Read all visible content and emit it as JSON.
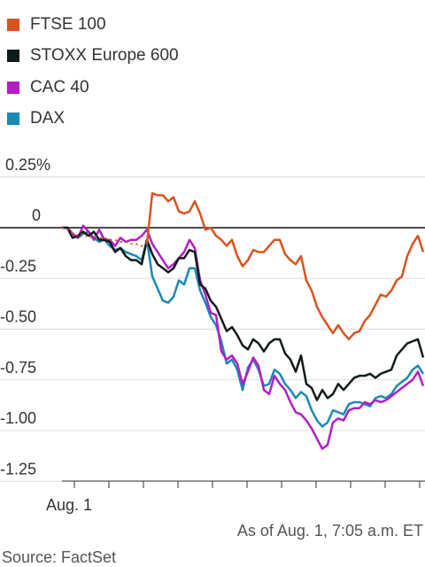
{
  "legend": [
    {
      "label": "FTSE 100",
      "color": "#d9531e"
    },
    {
      "label": "STOXX Europe 600",
      "color": "#111a1a"
    },
    {
      "label": "CAC 40",
      "color": "#b41ec4"
    },
    {
      "label": "DAX",
      "color": "#1a8ab5"
    }
  ],
  "footer": {
    "as_of": "As of Aug. 1, 7:05 a.m. ET",
    "source": "Source: FactSet"
  },
  "chart_data": {
    "type": "line",
    "y_tick_labels": [
      "0.25%",
      "0",
      "-0.25",
      "-0.50",
      "-0.75",
      "-1.00",
      "-1.25"
    ],
    "y_ticks": [
      0.25,
      0,
      -0.25,
      -0.5,
      -0.75,
      -1.0,
      -1.25
    ],
    "ylim": [
      -1.35,
      0.3
    ],
    "x_tick_label": "Aug. 1",
    "grid": true,
    "legend_position": "top-left",
    "series": [
      {
        "name": "FTSE 100",
        "color": "#d9531e",
        "x": [
          70,
          76,
          82,
          88,
          94,
          100,
          106,
          112,
          118,
          124,
          130,
          136,
          142,
          148,
          154,
          160,
          166,
          172,
          178,
          184,
          190,
          196,
          202,
          208,
          214,
          220,
          226,
          232,
          238,
          244,
          250,
          256,
          262,
          268,
          274,
          280,
          286,
          292,
          298,
          304,
          310,
          316,
          322,
          328,
          334,
          340,
          346,
          352,
          358,
          364,
          370,
          376,
          382,
          388,
          394,
          400,
          406,
          412,
          418,
          424,
          430,
          436,
          442,
          448,
          454,
          460,
          466,
          472,
          478
        ],
        "y": [
          0,
          -0.01,
          -0.03,
          -0.04,
          -0.03,
          -0.05,
          -0.04,
          -0.05,
          -0.05,
          -0.06,
          -0.06,
          -0.07,
          -0.07,
          -0.08,
          -0.08,
          -0.09,
          -0.08,
          0.17,
          0.16,
          0.16,
          0.13,
          0.15,
          0.08,
          0.07,
          0.08,
          0.13,
          0.07,
          -0.01,
          0.0,
          -0.04,
          -0.06,
          -0.09,
          -0.06,
          -0.14,
          -0.19,
          -0.16,
          -0.11,
          -0.12,
          -0.12,
          -0.09,
          -0.06,
          -0.06,
          -0.13,
          -0.16,
          -0.18,
          -0.14,
          -0.26,
          -0.31,
          -0.39,
          -0.44,
          -0.48,
          -0.52,
          -0.48,
          -0.52,
          -0.55,
          -0.52,
          -0.51,
          -0.46,
          -0.43,
          -0.38,
          -0.33,
          -0.34,
          -0.31,
          -0.26,
          -0.24,
          -0.14,
          -0.08,
          -0.04,
          -0.12
        ]
      },
      {
        "name": "STOXX Europe 600",
        "color": "#111a1a",
        "x": [
          70,
          76,
          82,
          88,
          94,
          100,
          106,
          112,
          118,
          124,
          130,
          136,
          142,
          148,
          154,
          160,
          166,
          172,
          178,
          184,
          190,
          196,
          202,
          208,
          214,
          220,
          226,
          232,
          238,
          244,
          250,
          256,
          262,
          268,
          274,
          280,
          286,
          292,
          298,
          304,
          310,
          316,
          322,
          328,
          334,
          340,
          346,
          352,
          358,
          364,
          370,
          376,
          382,
          388,
          394,
          400,
          406,
          412,
          418,
          424,
          430,
          436,
          442,
          448,
          454,
          460,
          466,
          472,
          478
        ],
        "y": [
          0,
          0,
          -0.05,
          -0.04,
          -0.02,
          -0.04,
          -0.02,
          -0.06,
          -0.06,
          -0.07,
          -0.12,
          -0.1,
          -0.14,
          -0.16,
          -0.16,
          -0.18,
          -0.06,
          -0.13,
          -0.18,
          -0.2,
          -0.22,
          -0.2,
          -0.15,
          -0.15,
          -0.11,
          -0.12,
          -0.28,
          -0.3,
          -0.36,
          -0.39,
          -0.45,
          -0.51,
          -0.49,
          -0.53,
          -0.58,
          -0.6,
          -0.55,
          -0.57,
          -0.61,
          -0.57,
          -0.55,
          -0.55,
          -0.62,
          -0.65,
          -0.71,
          -0.63,
          -0.77,
          -0.79,
          -0.85,
          -0.8,
          -0.84,
          -0.82,
          -0.77,
          -0.8,
          -0.77,
          -0.74,
          -0.73,
          -0.73,
          -0.72,
          -0.74,
          -0.72,
          -0.71,
          -0.7,
          -0.63,
          -0.6,
          -0.57,
          -0.56,
          -0.55,
          -0.64
        ]
      },
      {
        "name": "CAC 40",
        "color": "#b41ec4",
        "x": [
          70,
          76,
          82,
          88,
          94,
          100,
          106,
          112,
          118,
          124,
          130,
          136,
          142,
          148,
          154,
          160,
          166,
          172,
          178,
          184,
          190,
          196,
          202,
          208,
          214,
          220,
          226,
          232,
          238,
          244,
          250,
          256,
          262,
          268,
          274,
          280,
          286,
          292,
          298,
          304,
          310,
          316,
          322,
          328,
          334,
          340,
          346,
          352,
          358,
          364,
          370,
          376,
          382,
          388,
          394,
          400,
          406,
          412,
          418,
          424,
          430,
          436,
          442,
          448,
          454,
          460,
          466,
          472,
          478
        ],
        "y": [
          0,
          0,
          -0.03,
          -0.05,
          0.01,
          -0.02,
          -0.06,
          -0.01,
          -0.06,
          -0.06,
          -0.09,
          -0.05,
          -0.07,
          -0.06,
          -0.06,
          -0.04,
          -0.01,
          -0.08,
          -0.12,
          -0.16,
          -0.2,
          -0.18,
          -0.15,
          -0.12,
          -0.06,
          -0.1,
          -0.26,
          -0.33,
          -0.42,
          -0.43,
          -0.61,
          -0.65,
          -0.63,
          -0.67,
          -0.77,
          -0.71,
          -0.64,
          -0.68,
          -0.8,
          -0.82,
          -0.73,
          -0.77,
          -0.8,
          -0.86,
          -0.91,
          -0.92,
          -0.95,
          -0.99,
          -1.04,
          -1.09,
          -1.07,
          -0.96,
          -0.94,
          -0.95,
          -0.9,
          -0.89,
          -0.89,
          -0.86,
          -0.87,
          -0.85,
          -0.86,
          -0.85,
          -0.83,
          -0.81,
          -0.79,
          -0.77,
          -0.75,
          -0.71,
          -0.78
        ]
      },
      {
        "name": "DAX",
        "color": "#1a8ab5",
        "x": [
          70,
          76,
          82,
          88,
          94,
          100,
          106,
          112,
          118,
          124,
          130,
          136,
          142,
          148,
          154,
          160,
          166,
          172,
          178,
          184,
          190,
          196,
          202,
          208,
          214,
          220,
          226,
          232,
          238,
          244,
          250,
          256,
          262,
          268,
          274,
          280,
          286,
          292,
          298,
          304,
          310,
          316,
          322,
          328,
          334,
          340,
          346,
          352,
          358,
          364,
          370,
          376,
          382,
          388,
          394,
          400,
          406,
          412,
          418,
          424,
          430,
          436,
          442,
          448,
          454,
          460,
          466,
          472,
          478
        ],
        "y": [
          0,
          0,
          -0.03,
          -0.05,
          -0.03,
          -0.02,
          -0.05,
          -0.07,
          -0.06,
          -0.09,
          -0.11,
          -0.1,
          -0.12,
          -0.13,
          -0.14,
          -0.16,
          -0.06,
          -0.24,
          -0.3,
          -0.36,
          -0.37,
          -0.34,
          -0.26,
          -0.28,
          -0.2,
          -0.2,
          -0.31,
          -0.37,
          -0.44,
          -0.48,
          -0.56,
          -0.67,
          -0.65,
          -0.7,
          -0.8,
          -0.69,
          -0.65,
          -0.7,
          -0.78,
          -0.77,
          -0.7,
          -0.72,
          -0.77,
          -0.8,
          -0.84,
          -0.81,
          -0.83,
          -0.9,
          -0.95,
          -0.98,
          -0.96,
          -0.9,
          -0.91,
          -0.92,
          -0.87,
          -0.86,
          -0.86,
          -0.87,
          -0.88,
          -0.84,
          -0.83,
          -0.84,
          -0.82,
          -0.78,
          -0.76,
          -0.74,
          -0.7,
          -0.68,
          -0.72
        ]
      }
    ]
  }
}
